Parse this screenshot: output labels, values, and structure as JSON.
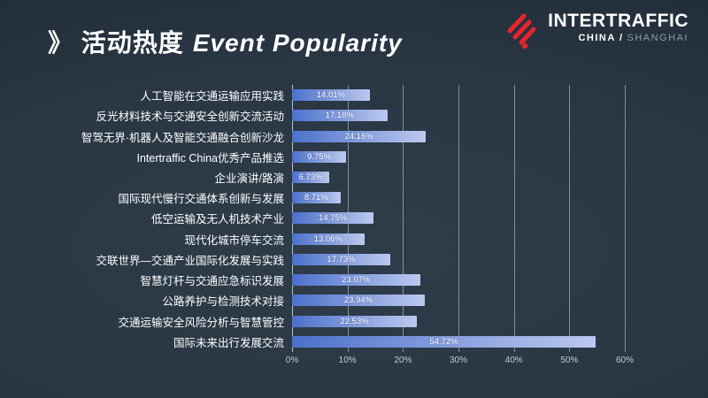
{
  "title": {
    "prefix": "》",
    "zh": "活动热度",
    "en": "Event Popularity"
  },
  "logo": {
    "brand": "INTERTRAFFIC",
    "sub_bold": "CHINA /",
    "sub_light": "SHANGHAI",
    "icon": "red-diagonal-stripes-mark",
    "icon_color": "#e8252c"
  },
  "chart_data": {
    "type": "bar",
    "orientation": "horizontal",
    "title": "活动热度 Event Popularity",
    "categories": [
      "人工智能在交通运输应用实践",
      "反光材料技术与交通安全创新交流活动",
      "智驾无界·机器人及智能交通融合创新沙龙",
      "Intertraffic China优秀产品推选",
      "企业演讲/路演",
      "国际现代慢行交通体系创新与发展",
      "低空运输及无人机技术产业",
      "现代化城市停车交流",
      "交联世界—交通产业国际化发展与实践",
      "智慧灯杆与交通应急标识发展",
      "公路养护与检测技术对接",
      "交通运输安全风险分析与智慧管控",
      "国际未来出行发展交流"
    ],
    "values": [
      14.01,
      17.18,
      24.16,
      9.75,
      6.73,
      8.71,
      14.75,
      13.06,
      17.73,
      23.07,
      23.94,
      22.53,
      54.72
    ],
    "value_labels": [
      "14.01%",
      "17.18%",
      "24.16%",
      "9.75%",
      "6.73%",
      "8.71%",
      "14.75%",
      "13.06%",
      "17.73%",
      "23.07%",
      "23.94%",
      "22.53%",
      "54.72%"
    ],
    "x_ticks": [
      "0%",
      "10%",
      "20%",
      "30%",
      "40%",
      "50%",
      "60%"
    ],
    "xlim": [
      0,
      60
    ],
    "grid": true,
    "legend": false,
    "bar_gradient": [
      "#4c71cb",
      "#bcc9ef"
    ],
    "value_label_color": "#ffffff",
    "tick_label_color": "#c3ccd3",
    "grid_color": "rgba(205,215,225,0.55)"
  }
}
